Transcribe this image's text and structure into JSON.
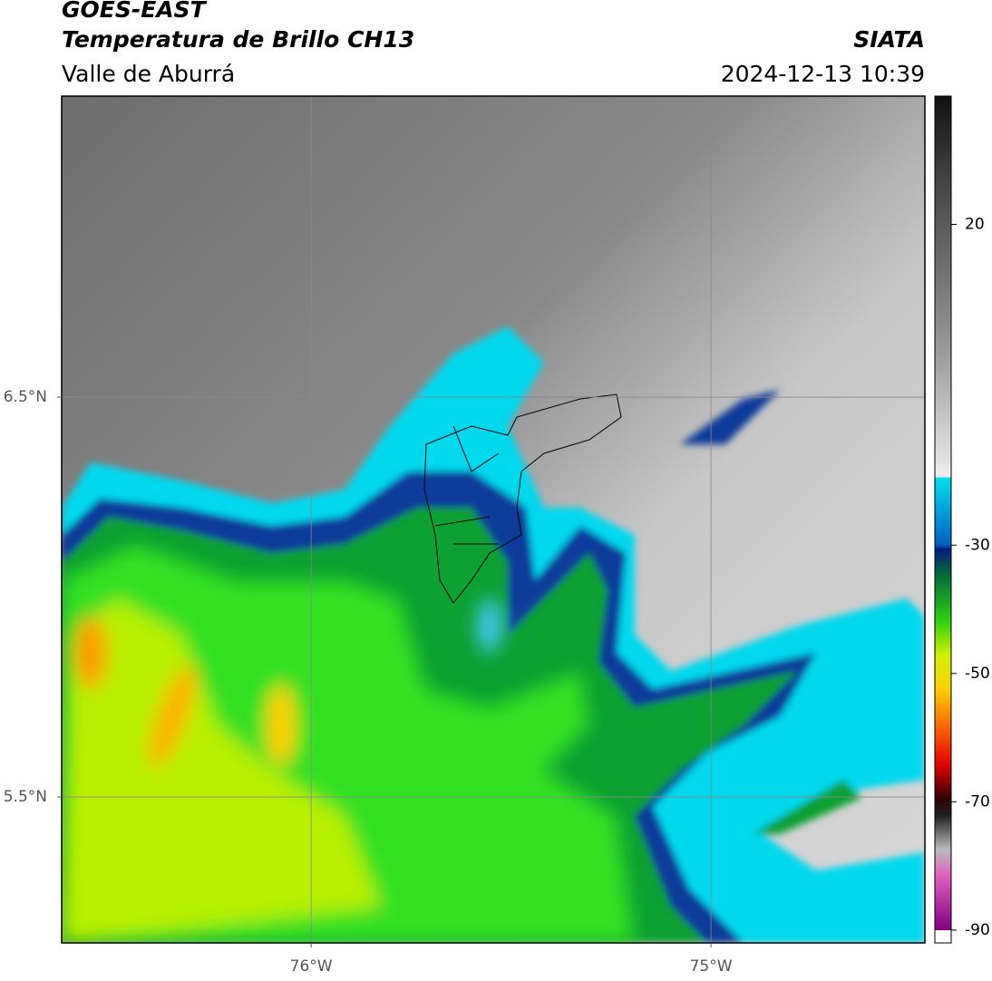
{
  "header": {
    "title": "GOES-EAST",
    "subtitle": "Temperatura de Brillo CH13",
    "region": "Valle de Aburrá",
    "source": "SIATA",
    "datetime": "2024-12-13 10:39"
  },
  "map": {
    "xlim": [
      -76.624,
      -74.465
    ],
    "ylim": [
      5.135,
      7.253
    ],
    "xticks": [
      {
        "value": -76,
        "label": "76°W"
      },
      {
        "value": -75,
        "label": "75°W"
      }
    ],
    "yticks": [
      {
        "value": 6.5,
        "label": "6.5°N"
      },
      {
        "value": 5.5,
        "label": "5.5°N"
      }
    ],
    "grid": true
  },
  "colorbar": {
    "lim": [
      -92,
      40
    ],
    "ticks": [
      20,
      -30,
      -50,
      -70,
      -90
    ]
  }
}
